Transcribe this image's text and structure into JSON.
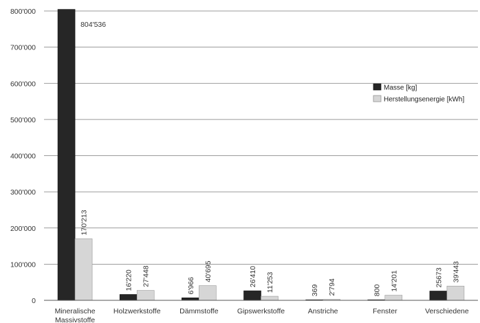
{
  "chart_data": {
    "type": "bar",
    "categories": [
      "Mineralische Massivstoffe",
      "Holzwerkstoffe",
      "Dämmstoffe",
      "Gipswerkstoffe",
      "Anstriche",
      "Fenster",
      "Verschiedene"
    ],
    "category_lines": [
      [
        "Mineralische",
        "Massivstoffe"
      ],
      [
        "Holzwerkstoffe"
      ],
      [
        "Dämmstoffe"
      ],
      [
        "Gipswerkstoffe"
      ],
      [
        "Anstriche"
      ],
      [
        "Fenster"
      ],
      [
        "Verschiedene"
      ]
    ],
    "series": [
      {
        "name": "Masse [kg]",
        "color": "#262626",
        "values": [
          804536,
          16220,
          6966,
          26410,
          369,
          800,
          25673
        ],
        "labels": [
          "804'536",
          "16'220",
          "6'966",
          "26'410",
          "369",
          "800",
          "25673"
        ]
      },
      {
        "name": "Herstellungsenergie [kWh]",
        "color": "#d6d6d6",
        "values": [
          170213,
          27448,
          40695,
          11253,
          2794,
          14201,
          39443
        ],
        "labels": [
          "170'213",
          "27'448",
          "40'695",
          "11'253",
          "2'794",
          "14'201",
          "39'443"
        ]
      }
    ],
    "ylim": [
      0,
      800000
    ],
    "yticks": [
      0,
      100000,
      200000,
      300000,
      400000,
      500000,
      600000,
      700000,
      800000
    ],
    "ytick_labels": [
      "0",
      "100'000",
      "200'000",
      "300'000",
      "400'000",
      "500'000",
      "600'000",
      "700'000",
      "800'000"
    ],
    "grid": true,
    "legend_position": "right",
    "title": "",
    "xlabel": "",
    "ylabel": ""
  }
}
